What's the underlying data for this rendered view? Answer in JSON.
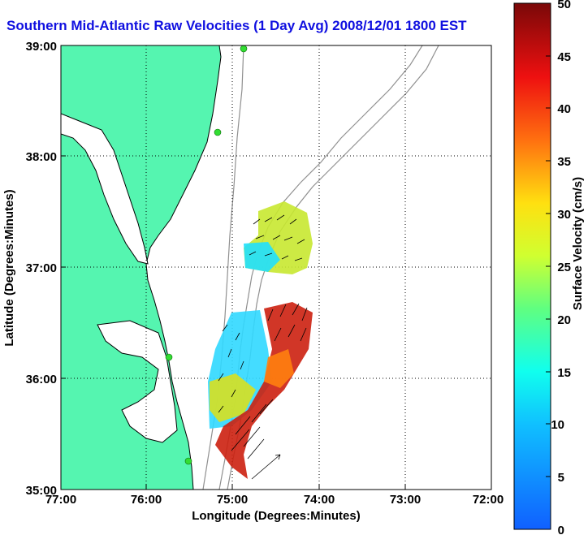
{
  "title": "Southern Mid-Atlantic Raw Velocities (1 Day Avg) 2008/12/01 1800 EST",
  "x_axis": {
    "label": "Longitude (Degrees:Minutes)",
    "ticks": [
      "77:00",
      "76:00",
      "75:00",
      "74:00",
      "73:00",
      "72:00"
    ]
  },
  "y_axis": {
    "label": "Latitude (Degrees:Minutes)",
    "ticks": [
      "39:00",
      "38:00",
      "37:00",
      "36:00",
      "35:00"
    ]
  },
  "colorbar": {
    "label": "Surface Velocity (cm/s)",
    "min": 0,
    "max": 50,
    "ticks": [
      "50",
      "45",
      "40",
      "35",
      "30",
      "25",
      "20",
      "15",
      "10",
      "5",
      "0"
    ]
  },
  "colors": {
    "land": "#55f5b0",
    "water": "#ffffff",
    "coastline": "#000000",
    "bathymetry": "#909090",
    "title": "#1010e0",
    "stations": "#33dd33"
  },
  "stations_count": 4
}
